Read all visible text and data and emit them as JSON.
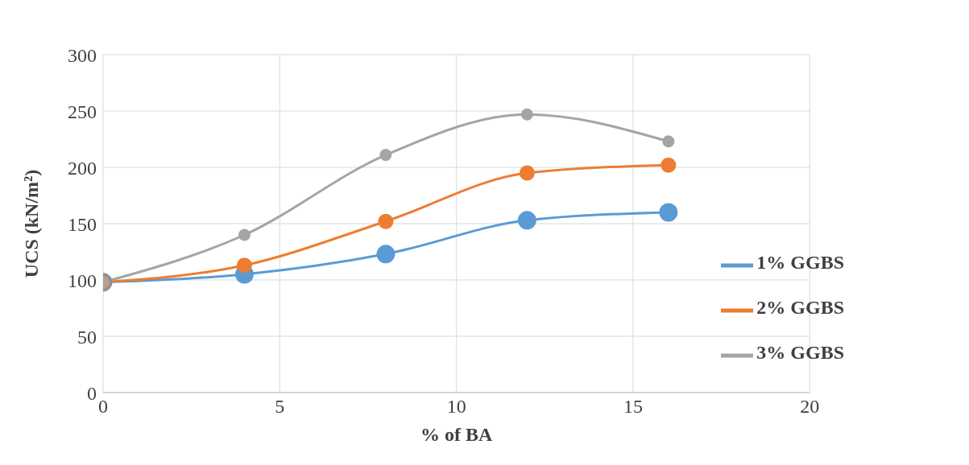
{
  "chart_data": {
    "type": "line",
    "xlabel": "% of BA",
    "ylabel": "UCS (kN/m²)",
    "x": [
      0,
      4,
      8,
      12,
      16
    ],
    "series": [
      {
        "name": "1% GGBS",
        "color": "#5b9bd5",
        "values": [
          98,
          105,
          123,
          153,
          160
        ]
      },
      {
        "name": "2% GGBS",
        "color": "#ed7d31",
        "values": [
          98,
          113,
          152,
          195,
          202
        ]
      },
      {
        "name": "3% GGBS",
        "color": "#a5a5a5",
        "values": [
          98,
          140,
          211,
          247,
          223
        ]
      }
    ],
    "xlim": [
      0,
      20
    ],
    "xticks": [
      0,
      5,
      10,
      15,
      20
    ],
    "ylim": [
      0,
      300
    ],
    "yticks": [
      0,
      50,
      100,
      150,
      200,
      250,
      300
    ],
    "grid": true,
    "legend": "right",
    "marker": "circle",
    "line_style": "solid"
  }
}
